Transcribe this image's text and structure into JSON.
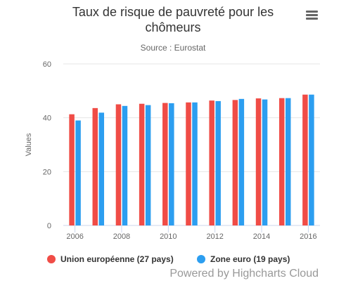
{
  "chart_data": {
    "type": "bar",
    "title_lines": [
      "Taux de risque de pauvreté pour les",
      "chômeurs"
    ],
    "subtitle": "Source : Eurostat",
    "ylabel": "Values",
    "xlabel": "",
    "ylim": [
      0,
      60
    ],
    "yticks": [
      0,
      20,
      40,
      60
    ],
    "xticks": [
      "2006",
      "2008",
      "2010",
      "2012",
      "2014",
      "2016"
    ],
    "categories": [
      "2006",
      "2007",
      "2008",
      "2009",
      "2010",
      "2011",
      "2012",
      "2013",
      "2014",
      "2015",
      "2016"
    ],
    "series": [
      {
        "name": "Union européenne (27 pays)",
        "color": "#f04c46",
        "values": [
          41.3,
          43.6,
          45.0,
          45.2,
          45.5,
          45.7,
          46.4,
          46.6,
          47.2,
          47.3,
          48.6
        ]
      },
      {
        "name": "Zone euro (19 pays)",
        "color": "#2c9ef0",
        "values": [
          39.0,
          41.9,
          44.4,
          44.7,
          45.4,
          45.7,
          46.2,
          47.0,
          46.8,
          47.3,
          48.6
        ]
      }
    ],
    "grid": true,
    "legend_position": "bottom-left",
    "credits": "Powered by Highcharts Cloud"
  },
  "icons": {
    "menu": "hamburger-menu-icon"
  }
}
